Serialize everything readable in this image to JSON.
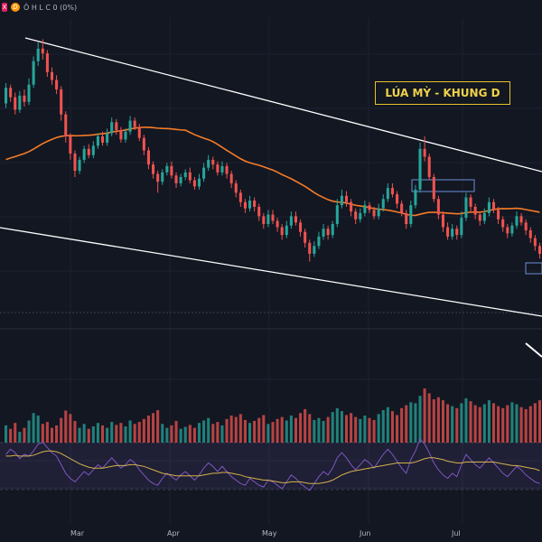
{
  "topbar": {
    "symbol_badge": "X",
    "interval_badge": "D",
    "ohlc_text": "Ô H L C 0 (0%)"
  },
  "chart_data": {
    "type": "candlestick",
    "title": "LÚA MỲ - KHUNG D",
    "x_tick_labels": [
      "Mar",
      "Apr",
      "May",
      "Jun",
      "Jul"
    ],
    "grid": true,
    "moving_average_color": "#f57c28",
    "channel_line_color": "#ffffff",
    "up_color": "#26a69a",
    "down_color": "#ef5350",
    "rsi_line_color": "#7e57c2",
    "rsi_signal_color": "#d4b24c",
    "candles": [
      {
        "o": 107,
        "c": 117,
        "h": 120,
        "l": 104
      },
      {
        "o": 117,
        "c": 111,
        "h": 119,
        "l": 108
      },
      {
        "o": 111,
        "c": 103,
        "h": 114,
        "l": 100
      },
      {
        "o": 103,
        "c": 112,
        "h": 115,
        "l": 101
      },
      {
        "o": 112,
        "c": 108,
        "h": 116,
        "l": 105
      },
      {
        "o": 108,
        "c": 119,
        "h": 123,
        "l": 106
      },
      {
        "o": 119,
        "c": 134,
        "h": 137,
        "l": 117
      },
      {
        "o": 134,
        "c": 142,
        "h": 146,
        "l": 131
      },
      {
        "o": 142,
        "c": 139,
        "h": 148,
        "l": 135
      },
      {
        "o": 139,
        "c": 127,
        "h": 141,
        "l": 124
      },
      {
        "o": 127,
        "c": 122,
        "h": 130,
        "l": 119
      },
      {
        "o": 122,
        "c": 116,
        "h": 125,
        "l": 113
      },
      {
        "o": 116,
        "c": 100,
        "h": 118,
        "l": 96
      },
      {
        "o": 100,
        "c": 86,
        "h": 102,
        "l": 82
      },
      {
        "o": 86,
        "c": 75,
        "h": 88,
        "l": 71
      },
      {
        "o": 75,
        "c": 64,
        "h": 77,
        "l": 60
      },
      {
        "o": 64,
        "c": 71,
        "h": 73,
        "l": 62
      },
      {
        "o": 71,
        "c": 78,
        "h": 80,
        "l": 69
      },
      {
        "o": 78,
        "c": 74,
        "h": 81,
        "l": 72
      },
      {
        "o": 74,
        "c": 80,
        "h": 83,
        "l": 72
      },
      {
        "o": 80,
        "c": 86,
        "h": 88,
        "l": 78
      },
      {
        "o": 86,
        "c": 82,
        "h": 89,
        "l": 80
      },
      {
        "o": 82,
        "c": 88,
        "h": 91,
        "l": 80
      },
      {
        "o": 88,
        "c": 95,
        "h": 98,
        "l": 86
      },
      {
        "o": 95,
        "c": 90,
        "h": 97,
        "l": 87
      },
      {
        "o": 90,
        "c": 84,
        "h": 92,
        "l": 82
      },
      {
        "o": 84,
        "c": 89,
        "h": 91,
        "l": 82
      },
      {
        "o": 89,
        "c": 96,
        "h": 99,
        "l": 87
      },
      {
        "o": 96,
        "c": 92,
        "h": 98,
        "l": 90
      },
      {
        "o": 92,
        "c": 85,
        "h": 94,
        "l": 83
      },
      {
        "o": 85,
        "c": 77,
        "h": 87,
        "l": 74
      },
      {
        "o": 77,
        "c": 68,
        "h": 79,
        "l": 65
      },
      {
        "o": 68,
        "c": 62,
        "h": 70,
        "l": 59
      },
      {
        "o": 62,
        "c": 57,
        "h": 64,
        "l": 50
      },
      {
        "o": 57,
        "c": 63,
        "h": 65,
        "l": 55
      },
      {
        "o": 63,
        "c": 67,
        "h": 69,
        "l": 61
      },
      {
        "o": 67,
        "c": 61,
        "h": 70,
        "l": 59
      },
      {
        "o": 61,
        "c": 56,
        "h": 63,
        "l": 53
      },
      {
        "o": 56,
        "c": 60,
        "h": 62,
        "l": 54
      },
      {
        "o": 60,
        "c": 63,
        "h": 65,
        "l": 58
      },
      {
        "o": 63,
        "c": 58,
        "h": 66,
        "l": 56
      },
      {
        "o": 58,
        "c": 54,
        "h": 60,
        "l": 52
      },
      {
        "o": 54,
        "c": 59,
        "h": 62,
        "l": 52
      },
      {
        "o": 59,
        "c": 66,
        "h": 69,
        "l": 57
      },
      {
        "o": 66,
        "c": 71,
        "h": 74,
        "l": 64
      },
      {
        "o": 71,
        "c": 68,
        "h": 73,
        "l": 65
      },
      {
        "o": 68,
        "c": 63,
        "h": 70,
        "l": 61
      },
      {
        "o": 63,
        "c": 67,
        "h": 70,
        "l": 61
      },
      {
        "o": 67,
        "c": 62,
        "h": 69,
        "l": 59
      },
      {
        "o": 62,
        "c": 56,
        "h": 64,
        "l": 53
      },
      {
        "o": 56,
        "c": 50,
        "h": 58,
        "l": 47
      },
      {
        "o": 50,
        "c": 44,
        "h": 52,
        "l": 41
      },
      {
        "o": 44,
        "c": 40,
        "h": 46,
        "l": 37
      },
      {
        "o": 40,
        "c": 45,
        "h": 48,
        "l": 38
      },
      {
        "o": 45,
        "c": 41,
        "h": 47,
        "l": 38
      },
      {
        "o": 41,
        "c": 35,
        "h": 43,
        "l": 32
      },
      {
        "o": 35,
        "c": 30,
        "h": 37,
        "l": 27
      },
      {
        "o": 30,
        "c": 36,
        "h": 39,
        "l": 28
      },
      {
        "o": 36,
        "c": 32,
        "h": 39,
        "l": 30
      },
      {
        "o": 32,
        "c": 28,
        "h": 34,
        "l": 25
      },
      {
        "o": 28,
        "c": 23,
        "h": 30,
        "l": 20
      },
      {
        "o": 23,
        "c": 29,
        "h": 32,
        "l": 21
      },
      {
        "o": 29,
        "c": 35,
        "h": 38,
        "l": 27
      },
      {
        "o": 35,
        "c": 31,
        "h": 38,
        "l": 29
      },
      {
        "o": 31,
        "c": 25,
        "h": 33,
        "l": 22
      },
      {
        "o": 25,
        "c": 18,
        "h": 27,
        "l": 15
      },
      {
        "o": 18,
        "c": 11,
        "h": 20,
        "l": 6
      },
      {
        "o": 11,
        "c": 16,
        "h": 19,
        "l": 9
      },
      {
        "o": 16,
        "c": 22,
        "h": 25,
        "l": 14
      },
      {
        "o": 22,
        "c": 27,
        "h": 30,
        "l": 20
      },
      {
        "o": 27,
        "c": 23,
        "h": 29,
        "l": 20
      },
      {
        "o": 23,
        "c": 30,
        "h": 32,
        "l": 21
      },
      {
        "o": 30,
        "c": 42,
        "h": 46,
        "l": 28
      },
      {
        "o": 42,
        "c": 48,
        "h": 52,
        "l": 40
      },
      {
        "o": 48,
        "c": 44,
        "h": 51,
        "l": 41
      },
      {
        "o": 44,
        "c": 38,
        "h": 46,
        "l": 35
      },
      {
        "o": 38,
        "c": 33,
        "h": 40,
        "l": 30
      },
      {
        "o": 33,
        "c": 37,
        "h": 40,
        "l": 31
      },
      {
        "o": 37,
        "c": 42,
        "h": 45,
        "l": 35
      },
      {
        "o": 42,
        "c": 39,
        "h": 44,
        "l": 37
      },
      {
        "o": 39,
        "c": 35,
        "h": 41,
        "l": 33
      },
      {
        "o": 35,
        "c": 40,
        "h": 43,
        "l": 33
      },
      {
        "o": 40,
        "c": 46,
        "h": 49,
        "l": 38
      },
      {
        "o": 46,
        "c": 53,
        "h": 56,
        "l": 44
      },
      {
        "o": 53,
        "c": 49,
        "h": 56,
        "l": 47
      },
      {
        "o": 49,
        "c": 43,
        "h": 51,
        "l": 40
      },
      {
        "o": 43,
        "c": 37,
        "h": 45,
        "l": 35
      },
      {
        "o": 37,
        "c": 30,
        "h": 39,
        "l": 27
      },
      {
        "o": 30,
        "c": 42,
        "h": 45,
        "l": 28
      },
      {
        "o": 42,
        "c": 52,
        "h": 55,
        "l": 40
      },
      {
        "o": 52,
        "c": 78,
        "h": 82,
        "l": 50
      },
      {
        "o": 78,
        "c": 73,
        "h": 86,
        "l": 70
      },
      {
        "o": 73,
        "c": 60,
        "h": 75,
        "l": 58
      },
      {
        "o": 60,
        "c": 46,
        "h": 62,
        "l": 44
      },
      {
        "o": 46,
        "c": 36,
        "h": 48,
        "l": 33
      },
      {
        "o": 36,
        "c": 28,
        "h": 38,
        "l": 25
      },
      {
        "o": 28,
        "c": 22,
        "h": 31,
        "l": 20
      },
      {
        "o": 22,
        "c": 27,
        "h": 30,
        "l": 20
      },
      {
        "o": 27,
        "c": 23,
        "h": 29,
        "l": 20
      },
      {
        "o": 23,
        "c": 34,
        "h": 38,
        "l": 21
      },
      {
        "o": 34,
        "c": 47,
        "h": 50,
        "l": 32
      },
      {
        "o": 47,
        "c": 41,
        "h": 49,
        "l": 38
      },
      {
        "o": 41,
        "c": 36,
        "h": 43,
        "l": 33
      },
      {
        "o": 36,
        "c": 32,
        "h": 38,
        "l": 29
      },
      {
        "o": 32,
        "c": 37,
        "h": 40,
        "l": 30
      },
      {
        "o": 37,
        "c": 44,
        "h": 47,
        "l": 35
      },
      {
        "o": 44,
        "c": 39,
        "h": 46,
        "l": 37
      },
      {
        "o": 39,
        "c": 33,
        "h": 41,
        "l": 30
      },
      {
        "o": 33,
        "c": 28,
        "h": 35,
        "l": 25
      },
      {
        "o": 28,
        "c": 24,
        "h": 30,
        "l": 21
      },
      {
        "o": 24,
        "c": 29,
        "h": 31,
        "l": 22
      },
      {
        "o": 29,
        "c": 35,
        "h": 38,
        "l": 27
      },
      {
        "o": 35,
        "c": 31,
        "h": 37,
        "l": 29
      },
      {
        "o": 31,
        "c": 26,
        "h": 33,
        "l": 23
      },
      {
        "o": 26,
        "c": 21,
        "h": 28,
        "l": 18
      },
      {
        "o": 21,
        "c": 16,
        "h": 23,
        "l": 13
      },
      {
        "o": 16,
        "c": 11,
        "h": 18,
        "l": 8
      }
    ],
    "volume": [
      35,
      28,
      40,
      22,
      30,
      45,
      60,
      55,
      38,
      42,
      30,
      35,
      50,
      65,
      58,
      44,
      30,
      38,
      28,
      33,
      40,
      35,
      30,
      42,
      36,
      40,
      33,
      45,
      38,
      42,
      48,
      55,
      60,
      66,
      38,
      30,
      35,
      44,
      28,
      32,
      36,
      30,
      40,
      45,
      50,
      38,
      42,
      35,
      48,
      55,
      52,
      58,
      46,
      40,
      44,
      50,
      56,
      38,
      42,
      48,
      52,
      45,
      55,
      50,
      60,
      68,
      58,
      46,
      50,
      44,
      52,
      62,
      70,
      64,
      56,
      60,
      52,
      48,
      55,
      50,
      46,
      58,
      66,
      72,
      64,
      56,
      70,
      76,
      82,
      80,
      95,
      110,
      100,
      88,
      92,
      86,
      78,
      74,
      70,
      80,
      90,
      84,
      76,
      72,
      78,
      86,
      80,
      74,
      70,
      76,
      82,
      78,
      72,
      68,
      74,
      80,
      86
    ],
    "rsi": [
      60,
      66,
      62,
      55,
      60,
      58,
      64,
      72,
      74,
      68,
      62,
      58,
      48,
      38,
      32,
      28,
      34,
      40,
      36,
      42,
      48,
      44,
      50,
      56,
      50,
      44,
      48,
      54,
      50,
      42,
      36,
      30,
      26,
      24,
      32,
      38,
      34,
      30,
      36,
      40,
      35,
      30,
      36,
      44,
      50,
      46,
      40,
      46,
      40,
      34,
      30,
      26,
      24,
      32,
      28,
      24,
      22,
      30,
      28,
      24,
      20,
      28,
      36,
      32,
      26,
      22,
      18,
      26,
      34,
      40,
      36,
      44,
      56,
      62,
      56,
      48,
      42,
      48,
      54,
      50,
      44,
      52,
      60,
      66,
      60,
      52,
      44,
      38,
      54,
      64,
      78,
      72,
      62,
      50,
      42,
      36,
      32,
      38,
      34,
      48,
      60,
      54,
      48,
      44,
      50,
      56,
      50,
      44,
      38,
      34,
      40,
      46,
      42,
      36,
      32,
      28,
      26
    ],
    "rsi_signal": [
      58,
      58,
      59,
      58,
      58,
      58,
      59,
      61,
      63,
      64,
      64,
      63,
      61,
      58,
      55,
      52,
      49,
      47,
      45,
      44,
      44,
      44,
      45,
      46,
      47,
      47,
      47,
      48,
      48,
      47,
      46,
      44,
      42,
      40,
      38,
      37,
      36,
      35,
      35,
      35,
      35,
      35,
      35,
      36,
      37,
      38,
      38,
      39,
      39,
      38,
      37,
      36,
      34,
      33,
      32,
      31,
      30,
      30,
      29,
      28,
      27,
      27,
      28,
      28,
      28,
      27,
      26,
      26,
      26,
      27,
      28,
      30,
      33,
      36,
      38,
      40,
      41,
      42,
      43,
      44,
      45,
      46,
      47,
      48,
      49,
      50,
      50,
      50,
      50,
      51,
      53,
      55,
      56,
      56,
      55,
      54,
      52,
      51,
      50,
      50,
      51,
      51,
      51,
      51,
      51,
      51,
      51,
      50,
      49,
      48,
      47,
      47,
      46,
      45,
      44,
      43,
      41
    ],
    "ma_note_style": "smoothed"
  }
}
